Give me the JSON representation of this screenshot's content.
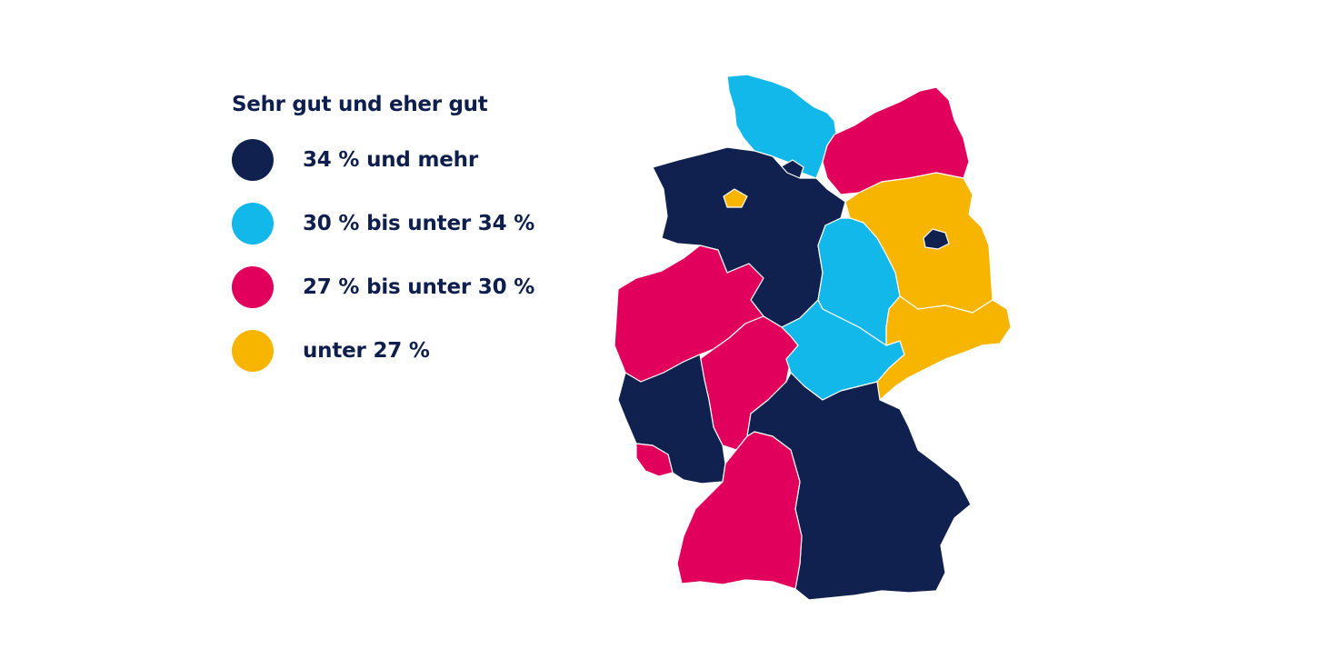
{
  "legend": {
    "title": "Sehr gut und eher gut",
    "items": [
      {
        "label": "34 % und mehr",
        "color": "#10214f"
      },
      {
        "label": "30 % bis unter 34 %",
        "color": "#12b8ea"
      },
      {
        "label": "27 % bis unter 30 %",
        "color": "#e2005d"
      },
      {
        "label": "unter 27 %",
        "color": "#f7b500"
      }
    ]
  },
  "map": {
    "states": [
      {
        "name": "Schleswig-Holstein",
        "category": "30 % bis unter 34 %"
      },
      {
        "name": "Hamburg",
        "category": "34 % und mehr"
      },
      {
        "name": "Mecklenburg-Vorpommern",
        "category": "27 % bis unter 30 %"
      },
      {
        "name": "Niedersachsen",
        "category": "34 % und mehr"
      },
      {
        "name": "Bremen",
        "category": "unter 27 %"
      },
      {
        "name": "Brandenburg",
        "category": "unter 27 %"
      },
      {
        "name": "Berlin",
        "category": "34 % und mehr"
      },
      {
        "name": "Sachsen-Anhalt",
        "category": "30 % bis unter 34 %"
      },
      {
        "name": "Nordrhein-Westfalen",
        "category": "27 % bis unter 30 %"
      },
      {
        "name": "Hessen",
        "category": "27 % bis unter 30 %"
      },
      {
        "name": "Thüringen",
        "category": "30 % bis unter 34 %"
      },
      {
        "name": "Sachsen",
        "category": "unter 27 %"
      },
      {
        "name": "Rheinland-Pfalz",
        "category": "34 % und mehr"
      },
      {
        "name": "Saarland",
        "category": "27 % bis unter 30 %"
      },
      {
        "name": "Bayern",
        "category": "34 % und mehr"
      },
      {
        "name": "Baden-Württemberg",
        "category": "27 % bis unter 30 %"
      }
    ]
  }
}
